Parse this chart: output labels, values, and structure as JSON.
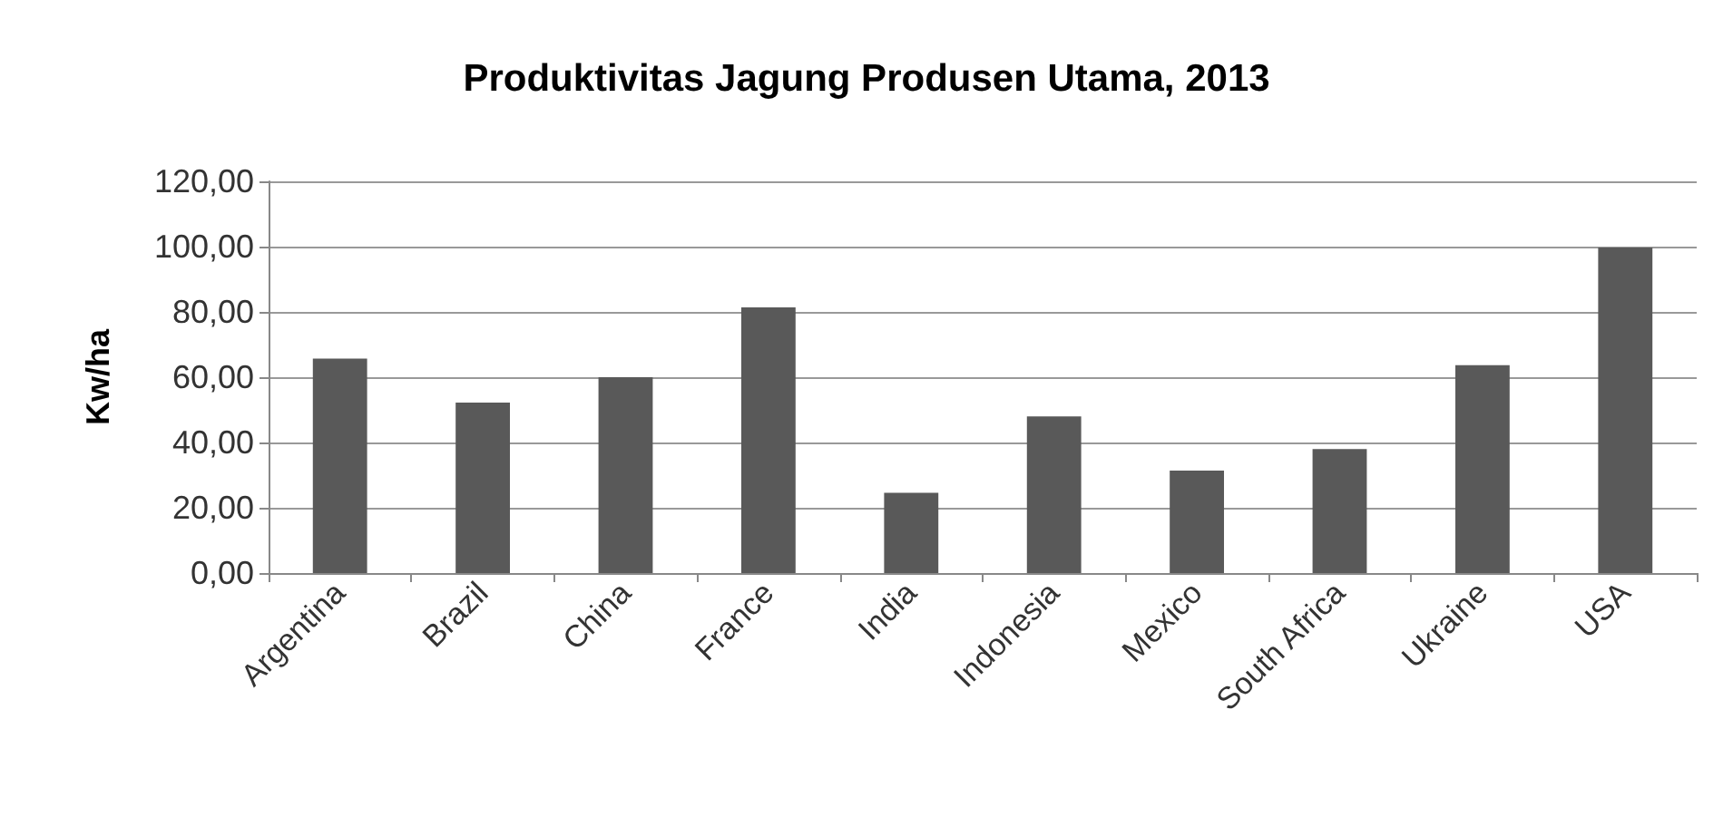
{
  "chart_data": {
    "type": "bar",
    "title": "Produktivitas Jagung Produsen Utama, 2013",
    "ylabel": "Kw/ha",
    "categories": [
      "Argentina",
      "Brazil",
      "China",
      "France",
      "India",
      "Indonesia",
      "Mexico",
      "South Africa",
      "Ukraine",
      "USA"
    ],
    "values": [
      65.7,
      52.2,
      60,
      81.4,
      24.6,
      48,
      31.4,
      38,
      63.7,
      99.7
    ],
    "color": "#595959",
    "ylim": [
      0,
      120
    ],
    "yticks": [
      {
        "value": 0,
        "label": "0,00"
      },
      {
        "value": 20,
        "label": "20,00"
      },
      {
        "value": 40,
        "label": "40,00"
      },
      {
        "value": 60,
        "label": "60,00"
      },
      {
        "value": 80,
        "label": "80,00"
      },
      {
        "value": 100,
        "label": "100,00"
      },
      {
        "value": 120,
        "label": "120,00"
      }
    ],
    "grid": "y"
  }
}
